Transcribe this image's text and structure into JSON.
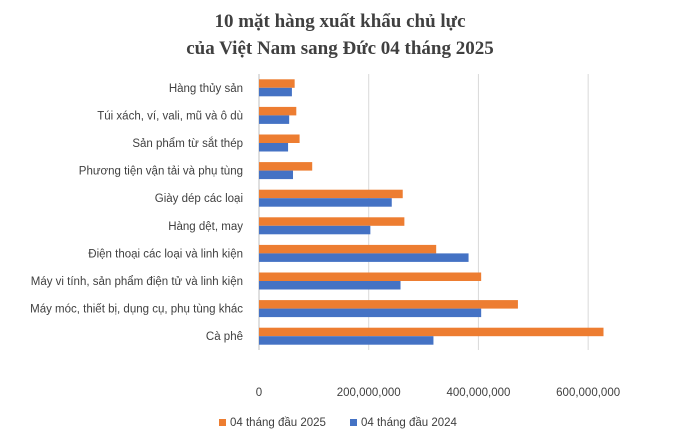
{
  "chart_data": {
    "type": "bar",
    "orientation": "horizontal",
    "title_lines": [
      "10 mặt hàng xuất khẩu chủ lực",
      "của Việt Nam sang Đức 04 tháng 2025"
    ],
    "categories": [
      "Cà phê",
      "Máy móc, thiết bị, dụng cụ, phụ tùng khác",
      "Máy vi tính, sản phẩm điện tử và linh kiện",
      "Điện thoại các loại và linh kiện",
      "Hàng dệt, may",
      "Giày dép các loại",
      "Phương tiện vận tải và phụ tùng",
      "Sản phẩm từ sắt thép",
      "Túi xách, ví, vali, mũ và ô dù",
      "Hàng thủy sản"
    ],
    "series": [
      {
        "name": "04 tháng đầu 2025",
        "color": "#ED7D31",
        "values": [
          628000000,
          472000000,
          405000000,
          323000000,
          265000000,
          262000000,
          97000000,
          74000000,
          68000000,
          65000000
        ]
      },
      {
        "name": "04 tháng đầu 2024",
        "color": "#4472C4",
        "values": [
          318000000,
          405000000,
          258000000,
          382000000,
          203000000,
          242000000,
          62000000,
          53000000,
          55000000,
          60000000
        ]
      }
    ],
    "x_ticks": [
      "0",
      "200,000,000",
      "400,000,000",
      "600,000,000"
    ],
    "x_tick_values": [
      0,
      200000000,
      400000000,
      600000000
    ],
    "xlim": [
      0,
      700000000
    ],
    "grid": true,
    "legend_position": "bottom"
  }
}
